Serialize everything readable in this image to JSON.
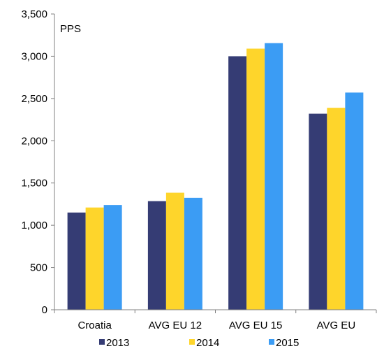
{
  "chart_data": {
    "type": "bar",
    "unit_label": "PPS",
    "categories": [
      "Croatia",
      "AVG EU 12",
      "AVG EU 15",
      "AVG EU"
    ],
    "series": [
      {
        "name": "2013",
        "color": "#353c74",
        "values": [
          1150,
          1285,
          3000,
          2320
        ]
      },
      {
        "name": "2014",
        "color": "#fed52b",
        "values": [
          1210,
          1385,
          3090,
          2390
        ]
      },
      {
        "name": "2015",
        "color": "#3b9cf4",
        "values": [
          1240,
          1325,
          3155,
          2570
        ]
      }
    ],
    "ylim": [
      0,
      3500
    ],
    "yticks": [
      0,
      500,
      1000,
      1500,
      2000,
      2500,
      3000,
      3500
    ],
    "ytick_labels": [
      "0",
      "500",
      "1,000",
      "1,500",
      "2,000",
      "2,500",
      "3,000",
      "3,500"
    ],
    "grid": false,
    "legend_position": "bottom"
  }
}
